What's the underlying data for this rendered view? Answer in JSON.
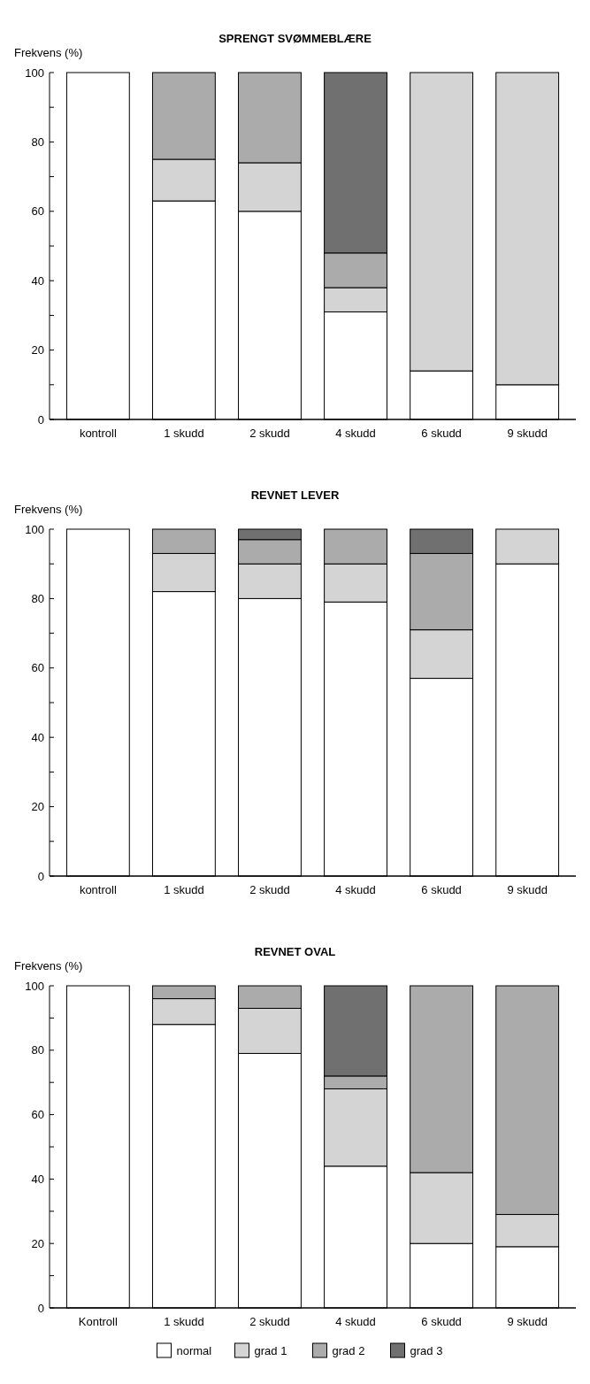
{
  "chart_data": [
    {
      "type": "bar",
      "stacked": true,
      "title": "SPRENGT SVØMMEBLÆRE",
      "ylabel": "Frekvens (%)",
      "categories": [
        "kontroll",
        "1 skudd",
        "2 skudd",
        "4 skudd",
        "6 skudd",
        "9 skudd"
      ],
      "ylim": [
        0,
        100
      ],
      "yticks": [
        0,
        {
          "value": 10,
          "label": null
        },
        20,
        {
          "value": 30,
          "label": null
        },
        40,
        {
          "value": 50,
          "label": null
        },
        60,
        {
          "value": 70,
          "label": null
        },
        80,
        {
          "value": 90,
          "label": null
        },
        100
      ],
      "legend": false,
      "series": [
        {
          "color": "#ffffff",
          "values": [
            100,
            63,
            60,
            31,
            14,
            10
          ]
        },
        {
          "color": "#d4d4d4",
          "values": [
            0,
            12,
            14,
            7,
            86,
            90
          ]
        },
        {
          "color": "#ababab",
          "values": [
            0,
            25,
            26,
            10,
            0,
            0
          ]
        },
        {
          "color": "#707070",
          "values": [
            0,
            0,
            0,
            52,
            0,
            0
          ]
        }
      ]
    },
    {
      "type": "bar",
      "stacked": true,
      "title": "REVNET LEVER",
      "ylabel": "Frekvens (%)",
      "categories": [
        "kontroll",
        "1 skudd",
        "2 skudd",
        "4 skudd",
        "6 skudd",
        "9 skudd"
      ],
      "ylim": [
        0,
        100
      ],
      "yticks": [
        0,
        {
          "value": 10,
          "label": null
        },
        20,
        {
          "value": 30,
          "label": null
        },
        40,
        {
          "value": 50,
          "label": null
        },
        60,
        {
          "value": 70,
          "label": null
        },
        80,
        {
          "value": 90,
          "label": null
        },
        100
      ],
      "legend": false,
      "series": [
        {
          "color": "#ffffff",
          "values": [
            100,
            82,
            80,
            79,
            57,
            90
          ]
        },
        {
          "color": "#d4d4d4",
          "values": [
            0,
            11,
            10,
            11,
            14,
            10
          ]
        },
        {
          "color": "#ababab",
          "values": [
            0,
            7,
            7,
            10,
            22,
            0
          ]
        },
        {
          "color": "#707070",
          "values": [
            0,
            0,
            3,
            0,
            7,
            0
          ]
        }
      ]
    },
    {
      "type": "bar",
      "stacked": true,
      "title": "REVNET OVAL",
      "ylabel": "Frekvens (%)",
      "categories": [
        "Kontroll",
        "1 skudd",
        "2 skudd",
        "4 skudd",
        "6 skudd",
        "9 skudd"
      ],
      "ylim": [
        0,
        100
      ],
      "yticks": [
        0,
        {
          "value": 10,
          "label": null
        },
        20,
        {
          "value": 30,
          "label": null
        },
        40,
        {
          "value": 50,
          "label": null
        },
        60,
        {
          "value": 70,
          "label": null
        },
        80,
        {
          "value": 90,
          "label": null
        },
        100
      ],
      "legend": "bottom",
      "series": [
        {
          "name": "normal",
          "color": "#ffffff",
          "values": [
            100,
            88,
            79,
            44,
            20,
            19
          ]
        },
        {
          "name": "grad 1",
          "color": "#d4d4d4",
          "values": [
            0,
            8,
            14,
            24,
            22,
            10
          ]
        },
        {
          "name": "grad 2",
          "color": "#ababab",
          "values": [
            0,
            4,
            7,
            4,
            58,
            71
          ]
        },
        {
          "name": "grad 3",
          "color": "#707070",
          "values": [
            0,
            0,
            0,
            28,
            0,
            0
          ]
        }
      ]
    }
  ]
}
